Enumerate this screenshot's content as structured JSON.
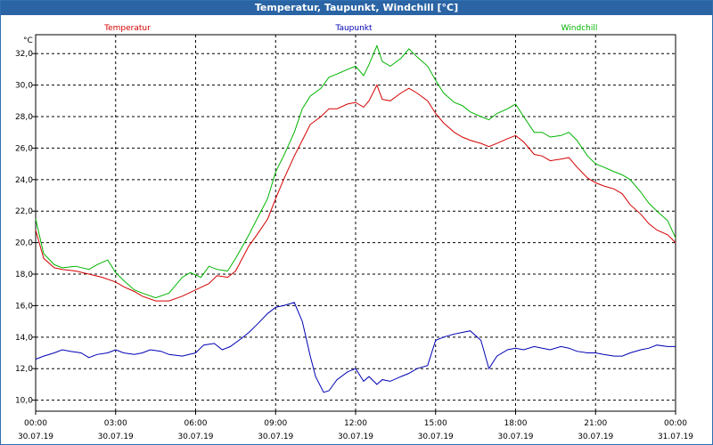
{
  "window": {
    "title": "Temperatur, Taupunkt, Windchill [°C]"
  },
  "chart_data": {
    "type": "line",
    "title": "Temperatur, Taupunkt, Windchill [°C]",
    "ylabel": "°C",
    "ylim": [
      9.3,
      33.2
    ],
    "yticks": [
      10,
      12,
      14,
      16,
      18,
      20,
      22,
      24,
      26,
      28,
      30,
      32
    ],
    "ytick_labels": [
      "10,0",
      "12,0",
      "14,0",
      "16,0",
      "18,0",
      "20,0",
      "22,0",
      "24,0",
      "26,0",
      "28,0",
      "30,0",
      "32,0"
    ],
    "xlim": [
      0,
      24
    ],
    "xticks": [
      0,
      3,
      6,
      9,
      12,
      15,
      18,
      21,
      24
    ],
    "xtick_times": [
      "00:00",
      "03:00",
      "06:00",
      "09:00",
      "12:00",
      "15:00",
      "18:00",
      "21:00",
      "00:00"
    ],
    "xtick_dates": [
      "30.07.19",
      "30.07.19",
      "30.07.19",
      "30.07.19",
      "30.07.19",
      "30.07.19",
      "30.07.19",
      "30.07.19",
      "31.07.19"
    ],
    "grid": true,
    "legend_position": "top",
    "series": [
      {
        "name": "Temperatur",
        "color": "#d40000",
        "x": [
          0,
          0.3,
          0.7,
          1.0,
          1.5,
          2.0,
          2.5,
          3.0,
          3.3,
          3.7,
          4.0,
          4.5,
          5.0,
          5.5,
          6.0,
          6.5,
          6.8,
          7.2,
          7.5,
          8.0,
          8.3,
          8.7,
          9.0,
          9.3,
          9.7,
          10.0,
          10.3,
          10.7,
          11.0,
          11.3,
          11.7,
          12.0,
          12.3,
          12.5,
          12.8,
          13.0,
          13.3,
          13.7,
          14.0,
          14.3,
          14.7,
          15.0,
          15.3,
          15.7,
          16.0,
          16.3,
          16.7,
          17.0,
          17.3,
          17.7,
          18.0,
          18.3,
          18.7,
          19.0,
          19.3,
          19.7,
          20.0,
          20.3,
          20.7,
          21.0,
          21.3,
          21.7,
          22.0,
          22.3,
          22.7,
          23.0,
          23.3,
          23.7,
          24.0
        ],
        "values": [
          20.8,
          19.0,
          18.4,
          18.3,
          18.2,
          18.0,
          17.8,
          17.5,
          17.2,
          16.9,
          16.6,
          16.3,
          16.3,
          16.6,
          17.0,
          17.4,
          17.9,
          17.8,
          18.2,
          19.8,
          20.5,
          21.5,
          22.8,
          24.0,
          25.5,
          26.5,
          27.5,
          28.0,
          28.5,
          28.5,
          28.8,
          28.9,
          28.6,
          29.0,
          30.0,
          29.1,
          29.0,
          29.5,
          29.8,
          29.5,
          29.0,
          28.2,
          27.6,
          27.0,
          26.7,
          26.5,
          26.3,
          26.1,
          26.3,
          26.6,
          26.8,
          26.4,
          25.6,
          25.5,
          25.2,
          25.3,
          25.4,
          24.8,
          24.1,
          23.8,
          23.6,
          23.4,
          23.1,
          22.4,
          21.8,
          21.2,
          20.8,
          20.5,
          20.0
        ]
      },
      {
        "name": "Taupunkt",
        "color": "#0000b4",
        "x": [
          0,
          0.3,
          0.7,
          1.0,
          1.3,
          1.7,
          2.0,
          2.3,
          2.7,
          3.0,
          3.3,
          3.7,
          4.0,
          4.3,
          4.7,
          5.0,
          5.5,
          6.0,
          6.3,
          6.7,
          7.0,
          7.3,
          7.7,
          8.0,
          8.3,
          8.7,
          9.0,
          9.3,
          9.7,
          10.0,
          10.3,
          10.5,
          10.8,
          11.0,
          11.3,
          11.7,
          12.0,
          12.3,
          12.5,
          12.8,
          13.0,
          13.3,
          13.7,
          14.0,
          14.3,
          14.7,
          15.0,
          15.3,
          15.7,
          16.0,
          16.3,
          16.7,
          17.0,
          17.3,
          17.7,
          18.0,
          18.3,
          18.7,
          19.0,
          19.3,
          19.7,
          20.0,
          20.3,
          20.7,
          21.0,
          21.3,
          21.7,
          22.0,
          22.3,
          22.7,
          23.0,
          23.3,
          23.7,
          24.0
        ],
        "values": [
          12.6,
          12.8,
          13.0,
          13.2,
          13.1,
          13.0,
          12.7,
          12.9,
          13.0,
          13.2,
          13.0,
          12.9,
          13.0,
          13.2,
          13.1,
          12.9,
          12.8,
          13.0,
          13.5,
          13.6,
          13.2,
          13.4,
          13.9,
          14.3,
          14.8,
          15.5,
          15.9,
          16.0,
          16.2,
          15.0,
          12.8,
          11.5,
          10.5,
          10.6,
          11.3,
          11.8,
          12.0,
          11.2,
          11.5,
          11.0,
          11.3,
          11.2,
          11.5,
          11.7,
          12.0,
          12.2,
          13.8,
          14.0,
          14.2,
          14.3,
          14.4,
          13.8,
          12.0,
          12.8,
          13.2,
          13.3,
          13.2,
          13.4,
          13.3,
          13.2,
          13.4,
          13.3,
          13.1,
          13.0,
          13.0,
          12.9,
          12.8,
          12.8,
          13.0,
          13.2,
          13.3,
          13.5,
          13.4,
          13.4
        ]
      },
      {
        "name": "Windchill",
        "color": "#00b400",
        "x": [
          0,
          0.3,
          0.7,
          1.0,
          1.5,
          2.0,
          2.3,
          2.7,
          3.0,
          3.3,
          3.7,
          4.0,
          4.5,
          5.0,
          5.5,
          5.8,
          6.2,
          6.5,
          6.8,
          7.2,
          7.5,
          8.0,
          8.3,
          8.7,
          9.0,
          9.3,
          9.7,
          10.0,
          10.3,
          10.7,
          11.0,
          11.3,
          11.7,
          12.0,
          12.3,
          12.5,
          12.8,
          13.0,
          13.3,
          13.7,
          14.0,
          14.3,
          14.7,
          15.0,
          15.3,
          15.7,
          16.0,
          16.3,
          16.7,
          17.0,
          17.3,
          17.7,
          18.0,
          18.3,
          18.7,
          19.0,
          19.3,
          19.7,
          20.0,
          20.3,
          20.7,
          21.0,
          21.3,
          21.7,
          22.0,
          22.3,
          22.7,
          23.0,
          23.3,
          23.7,
          24.0
        ],
        "values": [
          21.5,
          19.3,
          18.6,
          18.4,
          18.5,
          18.3,
          18.6,
          18.9,
          18.1,
          17.6,
          17.0,
          16.8,
          16.5,
          16.8,
          17.8,
          18.1,
          17.8,
          18.5,
          18.3,
          18.2,
          19.0,
          20.5,
          21.5,
          22.8,
          24.5,
          25.5,
          27.0,
          28.5,
          29.3,
          29.8,
          30.5,
          30.7,
          31.0,
          31.2,
          30.6,
          31.3,
          32.5,
          31.5,
          31.2,
          31.7,
          32.3,
          31.8,
          31.2,
          30.3,
          29.5,
          28.9,
          28.7,
          28.3,
          28.0,
          27.8,
          28.2,
          28.5,
          28.8,
          28.0,
          27.0,
          27.0,
          26.7,
          26.8,
          27.0,
          26.5,
          25.5,
          25.0,
          24.8,
          24.5,
          24.3,
          24.0,
          23.2,
          22.5,
          22.0,
          21.4,
          20.3
        ]
      }
    ]
  }
}
